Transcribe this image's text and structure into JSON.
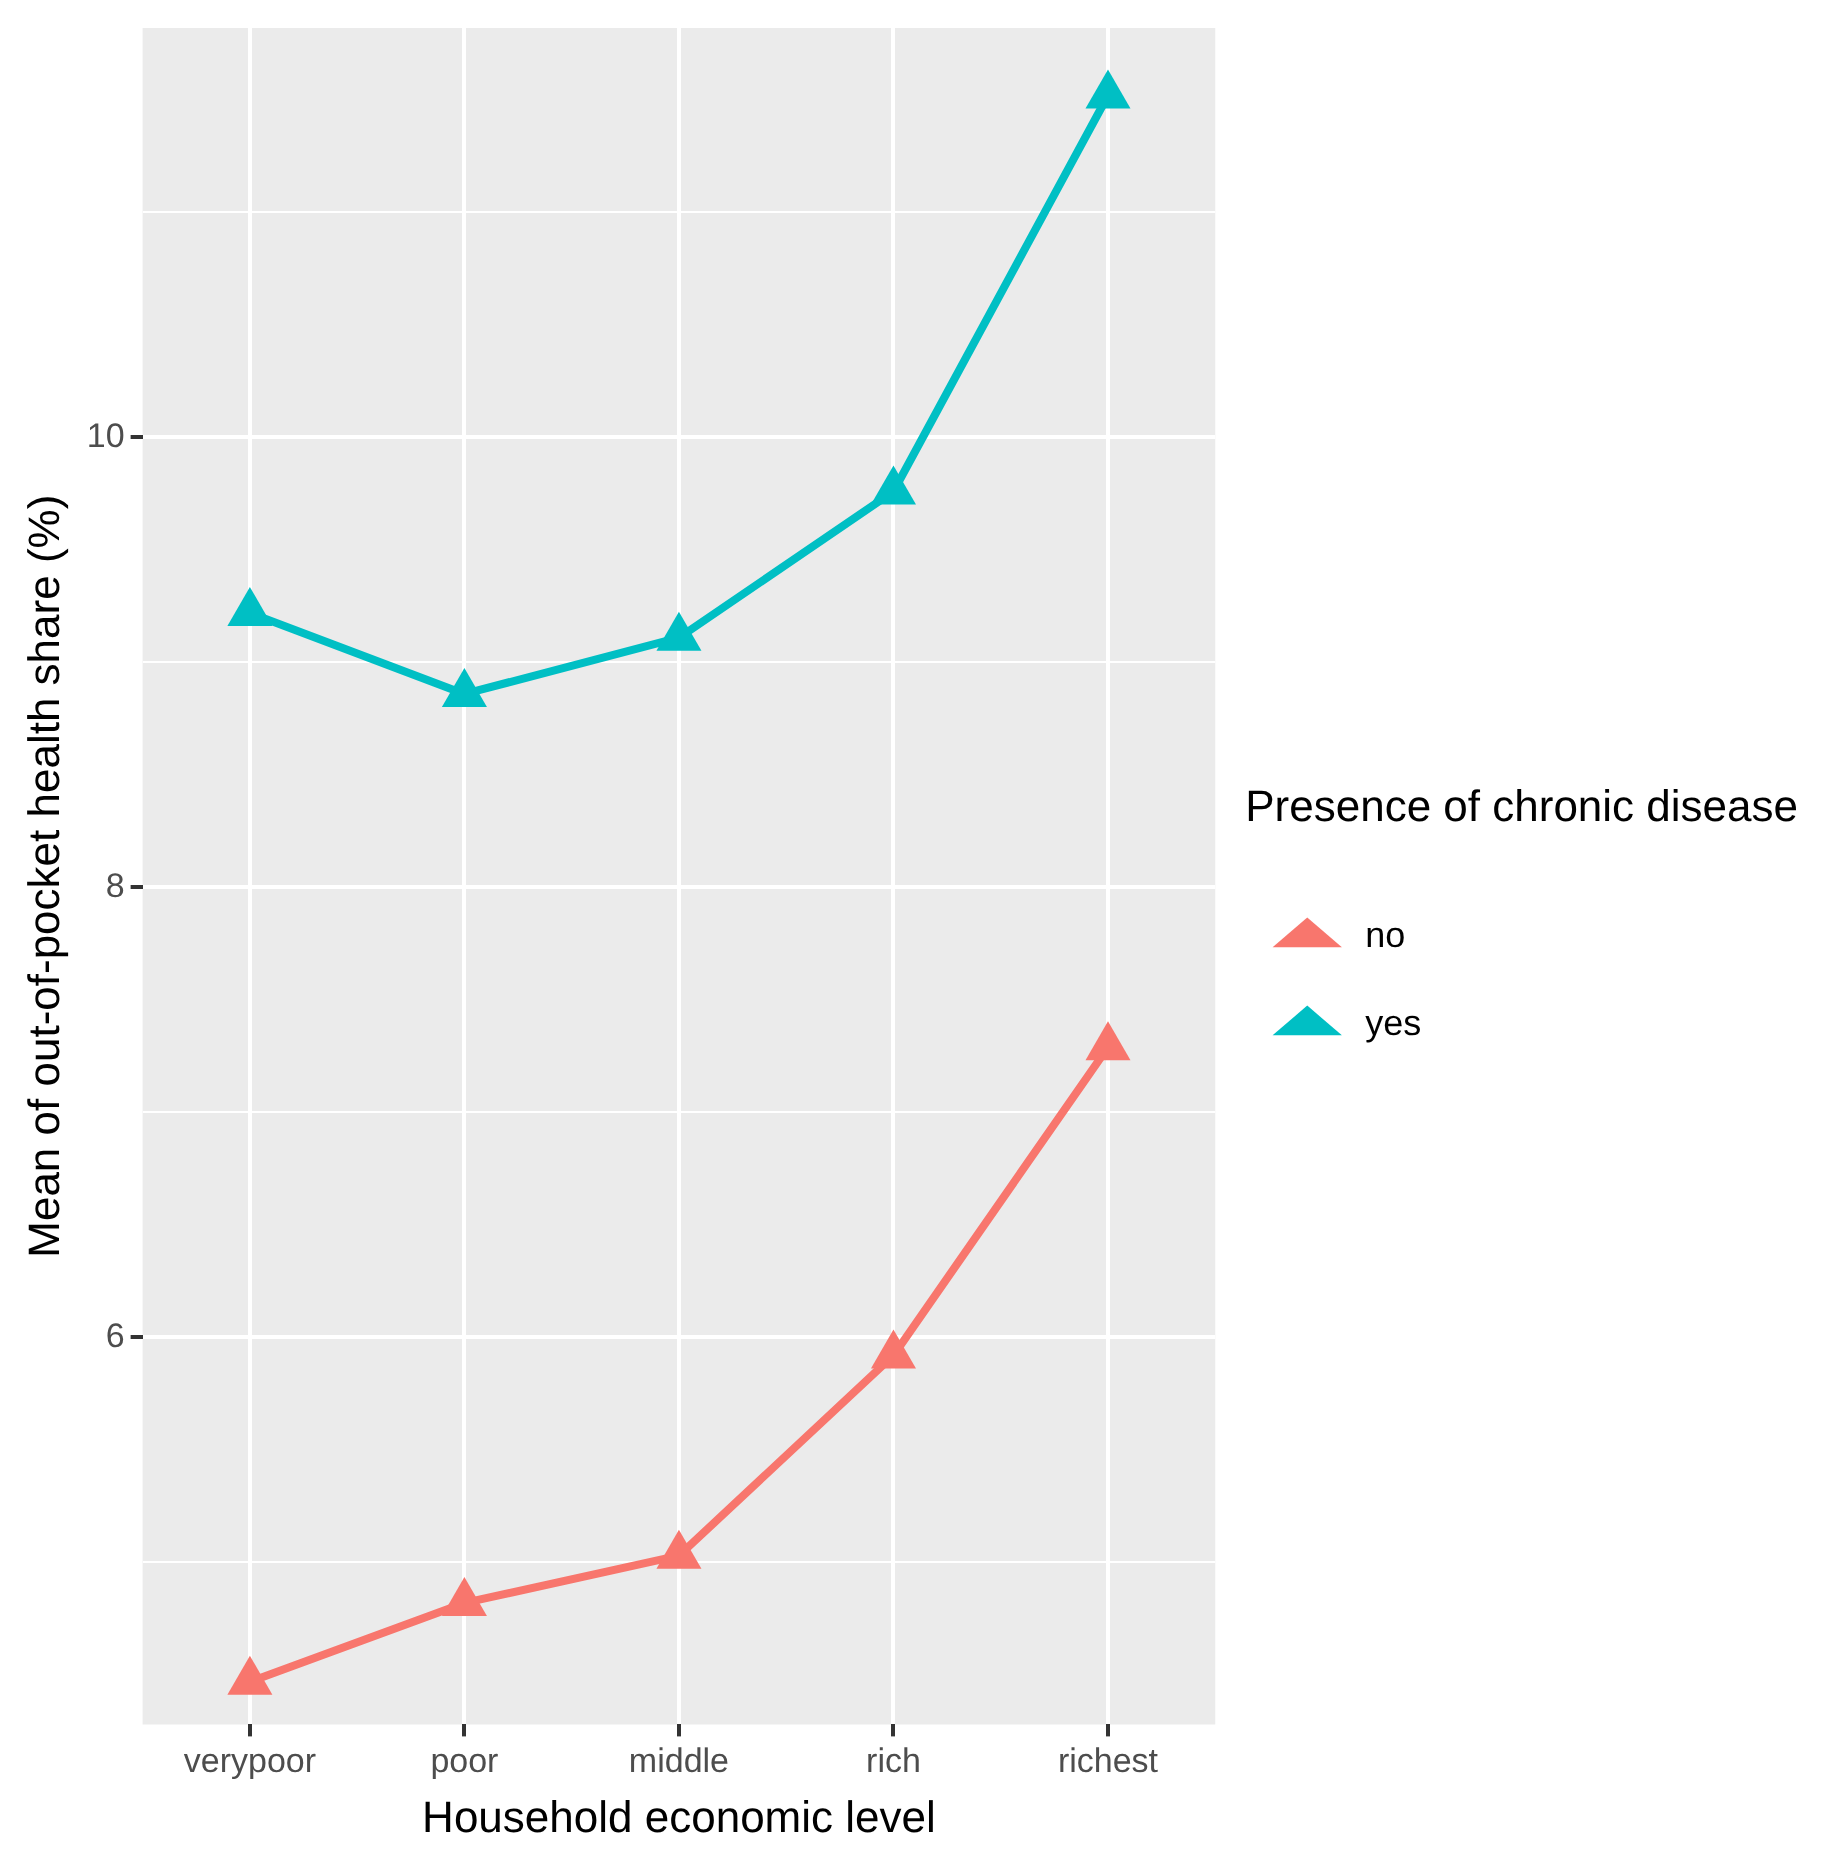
{
  "chart_data": {
    "type": "line",
    "xlabel": "Household economic level",
    "ylabel": "Mean of out-of-pocket health share (%)",
    "legend_title": "Presence of chronic disease",
    "categories": [
      "verypoor",
      "poor",
      "middle",
      "rich",
      "richest"
    ],
    "series": [
      {
        "name": "no",
        "color": "#f8766d",
        "values": [
          4.47,
          4.82,
          5.03,
          5.92,
          7.29
        ]
      },
      {
        "name": "yes",
        "color": "#00bfc4",
        "values": [
          9.22,
          8.86,
          9.11,
          9.76,
          11.52
        ]
      }
    ],
    "ylim": [
      4.28,
      11.82
    ],
    "yticks": [
      {
        "value": 5,
        "label": null
      },
      6,
      {
        "value": 7,
        "label": null
      },
      8,
      {
        "value": 9,
        "label": null
      },
      10,
      {
        "value": 11,
        "label": null
      }
    ],
    "grid": true,
    "legend": "right",
    "marker": "triangle",
    "line_style": "solid"
  }
}
